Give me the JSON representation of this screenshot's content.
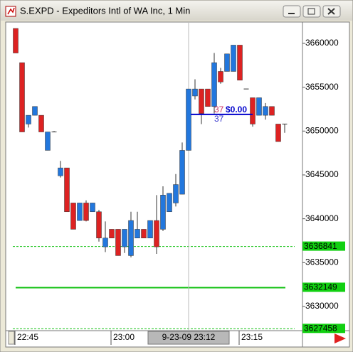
{
  "window_title": "S.EXPD - Expeditors Intl of WA Inc, 1 Min",
  "chart_data": {
    "type": "candlestick",
    "categories": [
      "22:45",
      null,
      null,
      null,
      null,
      null,
      null,
      null,
      null,
      null,
      null,
      null,
      null,
      null,
      null,
      "23:00",
      null,
      null,
      null,
      null,
      null,
      null,
      null,
      null,
      null,
      null,
      null,
      null,
      null,
      null,
      null,
      null,
      null,
      null,
      null,
      "23:15",
      null,
      null,
      null,
      null,
      null,
      null,
      null
    ],
    "open": [
      36.617,
      36.578,
      36.508,
      36.518,
      36.518,
      36.478,
      36.499,
      36.449,
      36.458,
      36.418,
      36.398,
      36.418,
      36.408,
      36.408,
      36.368,
      36.388,
      36.388,
      36.368,
      36.358,
      36.378,
      36.388,
      36.378,
      36.398,
      36.388,
      36.408,
      36.418,
      36.428,
      36.478,
      36.54,
      36.548,
      36.548,
      36.528,
      36.568,
      36.568,
      36.568,
      36.598,
      36.548,
      36.538,
      36.518,
      36.518,
      36.528,
      36.508,
      36.508
    ],
    "high": [
      36.617,
      36.578,
      36.518,
      36.528,
      36.518,
      36.499,
      36.5,
      36.466,
      36.458,
      36.418,
      36.418,
      36.421,
      36.418,
      36.41,
      36.397,
      36.388,
      36.388,
      36.388,
      36.408,
      36.408,
      36.388,
      36.398,
      36.427,
      36.437,
      36.429,
      36.451,
      36.487,
      36.548,
      36.559,
      36.548,
      36.548,
      36.589,
      36.572,
      36.588,
      36.598,
      36.598,
      36.548,
      36.538,
      36.538,
      36.532,
      36.528,
      36.508,
      36.508
    ],
    "low": [
      36.589,
      36.499,
      36.504,
      36.518,
      36.499,
      36.478,
      36.499,
      36.447,
      36.408,
      36.388,
      36.398,
      36.397,
      36.408,
      36.374,
      36.362,
      36.378,
      36.358,
      36.361,
      36.356,
      36.378,
      36.378,
      36.378,
      36.36,
      36.386,
      36.408,
      36.414,
      36.428,
      36.478,
      36.536,
      36.508,
      36.528,
      36.52,
      36.554,
      36.568,
      36.568,
      36.558,
      36.548,
      36.505,
      36.518,
      36.513,
      36.518,
      36.488,
      36.498
    ],
    "close": [
      36.589,
      36.499,
      36.518,
      36.528,
      36.499,
      36.499,
      36.499,
      36.458,
      36.408,
      36.388,
      36.418,
      36.398,
      36.418,
      36.378,
      36.378,
      36.378,
      36.358,
      36.388,
      36.398,
      36.388,
      36.378,
      36.398,
      36.368,
      36.427,
      36.429,
      36.439,
      36.478,
      36.548,
      36.548,
      36.52,
      36.528,
      36.578,
      36.556,
      36.588,
      36.598,
      36.558,
      36.548,
      36.508,
      36.538,
      36.528,
      36.518,
      36.488,
      36.508
    ],
    "up_color": "#2277dd",
    "down_color": "#dd2222",
    "ylim": [
      36.2724,
      36.6235
    ],
    "yticks": [
      {
        "value": 36.3,
        "label": "3630000"
      },
      {
        "value": 36.35,
        "label": "3635000"
      },
      {
        "value": 36.4,
        "label": "3640000"
      },
      {
        "value": 36.45,
        "label": "3645000"
      },
      {
        "value": 36.5,
        "label": "3650000"
      },
      {
        "value": 36.55,
        "label": "3655000"
      },
      {
        "value": 36.6,
        "label": "3660000"
      }
    ],
    "levels": [
      {
        "value": 36.3684,
        "label": "3636841",
        "style": "dashed"
      },
      {
        "value": 36.3215,
        "label": "3632149",
        "style": "solid"
      },
      {
        "value": 36.2746,
        "label": "3627458",
        "style": "dashed"
      }
    ],
    "position_line": {
      "value": 36.519,
      "label": "$0.00",
      "qty_top": "37",
      "qty_bottom": "37"
    },
    "cursor": {
      "index": 27,
      "label": "9-23-09 23:12"
    }
  }
}
